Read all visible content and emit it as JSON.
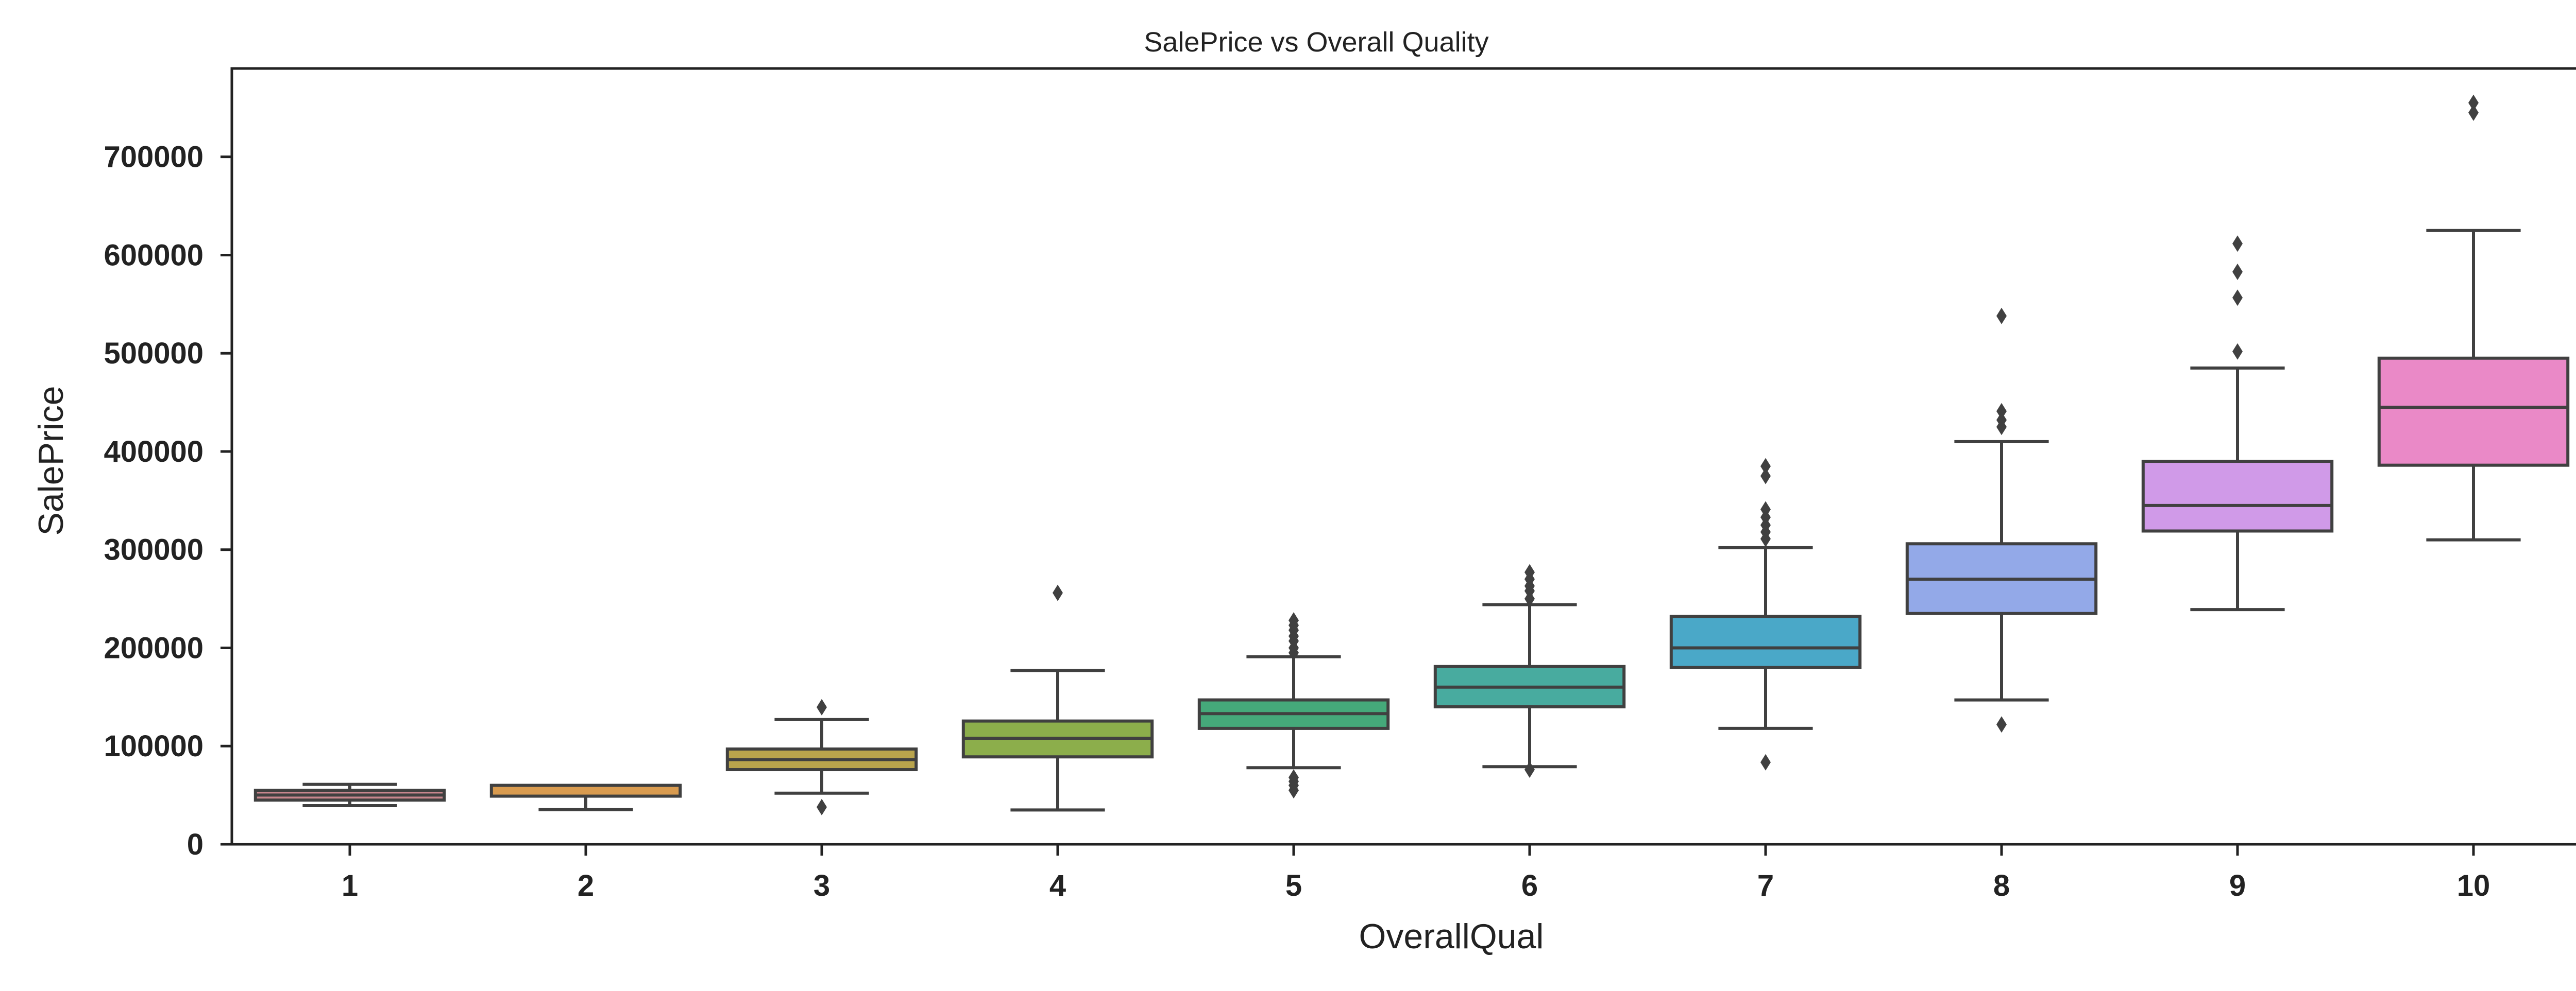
{
  "chart_data": {
    "type": "box",
    "title": "SalePrice vs Overall Quality",
    "xlabel": "OverallQual",
    "ylabel": "SalePrice",
    "ylim": [
      0,
      790000
    ],
    "yticks": [
      0,
      100000,
      200000,
      300000,
      400000,
      500000,
      600000,
      700000
    ],
    "categories": [
      "1",
      "2",
      "3",
      "4",
      "5",
      "6",
      "7",
      "8",
      "9",
      "10"
    ],
    "colors": [
      "#c8878e",
      "#d99b4f",
      "#b9a44c",
      "#8cae4b",
      "#45a97a",
      "#48ab9f",
      "#4aa8c8",
      "#93a9e8",
      "#d09ae8",
      "#ea89c7"
    ],
    "line_color": "#404040",
    "boxes": [
      {
        "category": "1",
        "whislo": 39300,
        "q1": 45000,
        "median": 50150,
        "q3": 55000,
        "whishi": 61000,
        "outliers": []
      },
      {
        "category": "2",
        "whislo": 35300,
        "q1": 49000,
        "median": 60000,
        "q3": 60000,
        "whishi": 60000,
        "outliers": []
      },
      {
        "category": "3",
        "whislo": 52000,
        "q1": 76000,
        "median": 86250,
        "q3": 97000,
        "whishi": 127000,
        "outliers": [
          37900,
          139600
        ]
      },
      {
        "category": "4",
        "whislo": 34900,
        "q1": 89000,
        "median": 108000,
        "q3": 125500,
        "whishi": 177000,
        "outliers": [
          256000
        ]
      },
      {
        "category": "5",
        "whislo": 78000,
        "q1": 118000,
        "median": 133000,
        "q3": 147000,
        "whishi": 191000,
        "outliers": [
          55000,
          60000,
          64000,
          68000,
          195000,
          200000,
          207000,
          212000,
          218000,
          223000,
          228000
        ]
      },
      {
        "category": "6",
        "whislo": 79000,
        "q1": 140000,
        "median": 160000,
        "q3": 181000,
        "whishi": 244000,
        "outliers": [
          76000,
          250000,
          258000,
          263000,
          270000,
          277000
        ]
      },
      {
        "category": "7",
        "whislo": 118000,
        "q1": 180000,
        "median": 200000,
        "q3": 232000,
        "whishi": 302000,
        "outliers": [
          83500,
          311000,
          318000,
          325000,
          333000,
          341000,
          375000,
          385000
        ]
      },
      {
        "category": "8",
        "whislo": 147000,
        "q1": 235000,
        "median": 270000,
        "q3": 306000,
        "whishi": 410000,
        "outliers": [
          122000,
          425000,
          432000,
          441000,
          538000
        ]
      },
      {
        "category": "9",
        "whislo": 239000,
        "q1": 319000,
        "median": 345000,
        "q3": 390000,
        "whishi": 485000,
        "outliers": [
          501837,
          556581,
          582933,
          611657
        ]
      },
      {
        "category": "10",
        "whislo": 310000,
        "q1": 386000,
        "median": 445000,
        "q3": 495000,
        "whishi": 625000,
        "outliers": [
          745000,
          755000
        ]
      }
    ]
  }
}
